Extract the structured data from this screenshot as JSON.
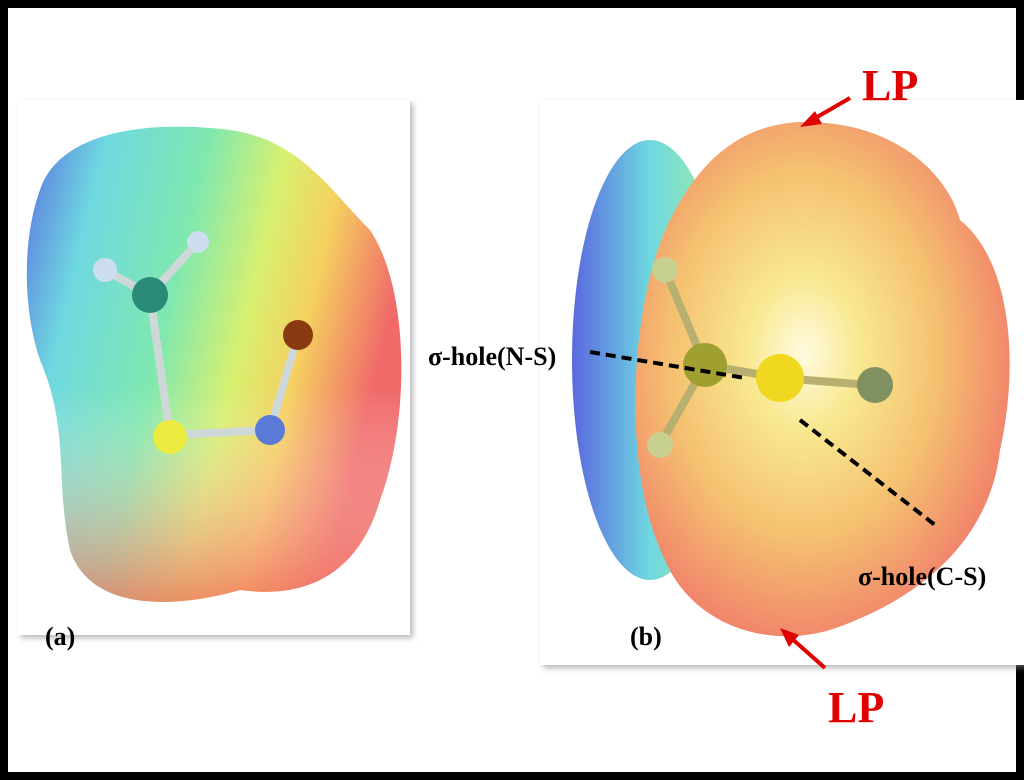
{
  "panels": [
    {
      "label": "(a)"
    },
    {
      "label": "(b)",
      "annotations": {
        "sigma_hole_ns": "σ-hole(N-S)",
        "sigma_hole_cs": "σ-hole(C-S)",
        "lp_top": "LP",
        "lp_bottom": "LP"
      }
    }
  ]
}
